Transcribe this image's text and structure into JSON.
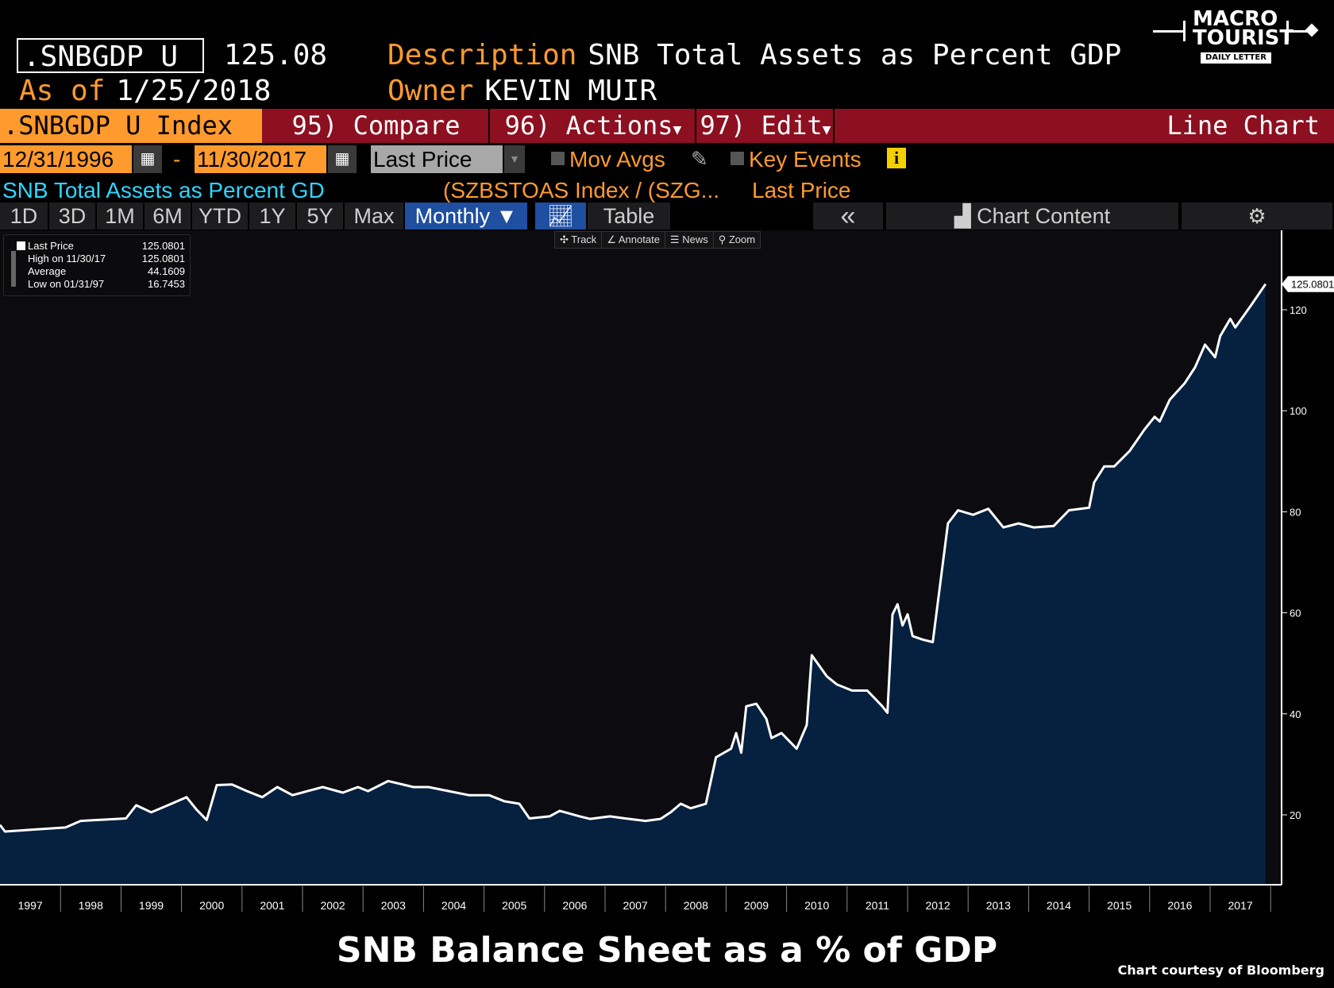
{
  "header": {
    "ticker": ".SNBGDP U",
    "last_value": "125.08",
    "description_label": "Description",
    "description": "SNB Total Assets as Percent GDP",
    "as_of_label": "As of",
    "as_of": "1/25/2018",
    "owner_label": "Owner",
    "owner": "KEVIN MUIR"
  },
  "logo": {
    "line1": "MACRO",
    "line2": "TOURIST",
    "line3": "DAILY LETTER"
  },
  "command_bar": {
    "security": ".SNBGDP U Index",
    "compare": "95) Compare",
    "actions": "96) Actions",
    "edit": "97) Edit",
    "view": "Line Chart"
  },
  "controls": {
    "start_date": "12/31/1996",
    "separator": "-",
    "end_date": "11/30/2017",
    "field": "Last Price",
    "mov_avgs": "Mov Avgs",
    "key_events": "Key Events"
  },
  "series_line": {
    "name": "SNB Total Assets as Percent GD",
    "formula": "(SZBSTOAS Index / (SZG...",
    "field": "Last Price"
  },
  "tabs": {
    "items": [
      "1D",
      "3D",
      "1M",
      "6M",
      "YTD",
      "1Y",
      "5Y",
      "Max"
    ],
    "period": "Monthly ▼",
    "table": "Table",
    "collapse": "«",
    "chart_content": "Chart Content"
  },
  "toolbar": {
    "track": "Track",
    "annotate": "Annotate",
    "news": "News",
    "zoom": "Zoom"
  },
  "legend": {
    "last_price_label": "Last Price",
    "last_price": "125.0801",
    "high_label": "High on 11/30/17",
    "high": "125.0801",
    "avg_label": "Average",
    "avg": "44.1609",
    "low_label": "Low on 01/31/97",
    "low": "16.7453"
  },
  "colors": {
    "line": "#ffffff",
    "fill": "#06203f",
    "accent": "#ff9a2e",
    "command_bar": "#8c1020",
    "cyan": "#2fd6ff"
  },
  "chart_data": {
    "type": "area",
    "title": "SNB Balance Sheet as a % of GDP",
    "credit": "Chart courtesy of Bloomberg",
    "ylim": [
      6,
      130
    ],
    "yticks": [
      20,
      40,
      60,
      80,
      100,
      120
    ],
    "xticks": [
      "1997",
      "1998",
      "1999",
      "2000",
      "2001",
      "2002",
      "2003",
      "2004",
      "2005",
      "2006",
      "2007",
      "2008",
      "2009",
      "2010",
      "2011",
      "2012",
      "2013",
      "2014",
      "2015",
      "2016",
      "2017"
    ],
    "last_label": "125.0801",
    "series": [
      {
        "name": "Last Price",
        "points": [
          [
            "1996-12",
            18.0
          ],
          [
            "1997-01",
            16.7
          ],
          [
            "1997-07",
            17.1
          ],
          [
            "1998-01",
            17.5
          ],
          [
            "1998-04",
            18.8
          ],
          [
            "1999-01",
            19.3
          ],
          [
            "1999-03",
            21.9
          ],
          [
            "1999-06",
            20.5
          ],
          [
            "1999-10",
            22.2
          ],
          [
            "2000-01",
            23.5
          ],
          [
            "2000-03",
            21.0
          ],
          [
            "2000-05",
            19.0
          ],
          [
            "2000-07",
            25.9
          ],
          [
            "2000-10",
            26.0
          ],
          [
            "2001-01",
            24.7
          ],
          [
            "2001-04",
            23.5
          ],
          [
            "2001-07",
            25.5
          ],
          [
            "2001-10",
            23.9
          ],
          [
            "2002-01",
            24.7
          ],
          [
            "2002-04",
            25.5
          ],
          [
            "2002-08",
            24.4
          ],
          [
            "2002-11",
            25.5
          ],
          [
            "2003-01",
            24.7
          ],
          [
            "2003-05",
            26.7
          ],
          [
            "2003-10",
            25.5
          ],
          [
            "2004-01",
            25.5
          ],
          [
            "2004-05",
            24.7
          ],
          [
            "2004-09",
            23.9
          ],
          [
            "2005-01",
            23.9
          ],
          [
            "2005-04",
            22.7
          ],
          [
            "2005-07",
            22.2
          ],
          [
            "2005-09",
            19.3
          ],
          [
            "2006-01",
            19.7
          ],
          [
            "2006-03",
            20.8
          ],
          [
            "2006-07",
            19.7
          ],
          [
            "2006-09",
            19.2
          ],
          [
            "2007-01",
            19.7
          ],
          [
            "2007-04",
            19.3
          ],
          [
            "2007-08",
            18.8
          ],
          [
            "2007-11",
            19.2
          ],
          [
            "2008-01",
            20.5
          ],
          [
            "2008-03",
            22.2
          ],
          [
            "2008-05",
            21.3
          ],
          [
            "2008-08",
            22.2
          ],
          [
            "2008-10",
            31.4
          ],
          [
            "2009-01",
            33.1
          ],
          [
            "2009-02",
            36.2
          ],
          [
            "2009-03",
            32.3
          ],
          [
            "2009-04",
            41.5
          ],
          [
            "2009-06",
            42.0
          ],
          [
            "2009-08",
            39.0
          ],
          [
            "2009-09",
            35.2
          ],
          [
            "2009-11",
            36.2
          ],
          [
            "2010-02",
            33.1
          ],
          [
            "2010-04",
            37.8
          ],
          [
            "2010-05",
            51.6
          ],
          [
            "2010-08",
            47.4
          ],
          [
            "2010-10",
            45.8
          ],
          [
            "2011-01",
            44.6
          ],
          [
            "2011-04",
            44.6
          ],
          [
            "2011-07",
            41.5
          ],
          [
            "2011-08",
            40.2
          ],
          [
            "2011-09",
            59.7
          ],
          [
            "2011-10",
            61.7
          ],
          [
            "2011-11",
            57.5
          ],
          [
            "2011-12",
            59.7
          ],
          [
            "2012-01",
            55.4
          ],
          [
            "2012-03",
            54.7
          ],
          [
            "2012-05",
            54.2
          ],
          [
            "2012-08",
            77.7
          ],
          [
            "2012-10",
            80.3
          ],
          [
            "2013-01",
            79.4
          ],
          [
            "2013-04",
            80.6
          ],
          [
            "2013-07",
            76.9
          ],
          [
            "2013-10",
            77.7
          ],
          [
            "2014-01",
            76.9
          ],
          [
            "2014-05",
            77.2
          ],
          [
            "2014-08",
            80.3
          ],
          [
            "2014-12",
            80.8
          ],
          [
            "2015-01",
            85.8
          ],
          [
            "2015-03",
            89.0
          ],
          [
            "2015-05",
            89.0
          ],
          [
            "2015-08",
            92.0
          ],
          [
            "2015-11",
            96.3
          ],
          [
            "2016-01",
            98.8
          ],
          [
            "2016-02",
            97.9
          ],
          [
            "2016-04",
            102.2
          ],
          [
            "2016-07",
            105.5
          ],
          [
            "2016-09",
            108.6
          ],
          [
            "2016-11",
            113.1
          ],
          [
            "2017-01",
            110.6
          ],
          [
            "2017-02",
            114.8
          ],
          [
            "2017-04",
            118.2
          ],
          [
            "2017-05",
            116.5
          ],
          [
            "2017-08",
            120.7
          ],
          [
            "2017-11",
            125.08
          ]
        ]
      }
    ]
  }
}
